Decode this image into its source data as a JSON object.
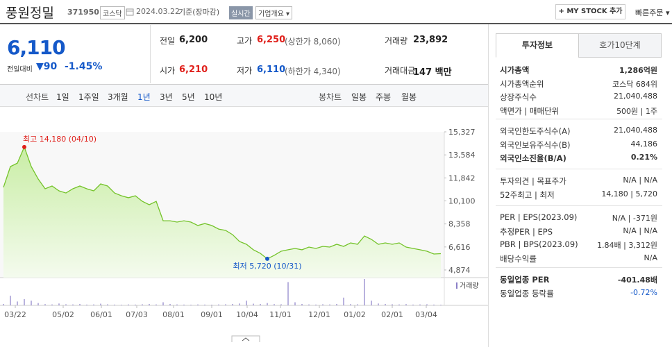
{
  "header": {
    "name": "풍원정밀",
    "code": "371950",
    "market": "코스닥",
    "date": "2024.03.22",
    "basis": "기준(장마감)",
    "realtime": "실시간",
    "overview": "기업개요",
    "mystock": "+ MY STOCK 추가",
    "quick_order": "빠른주문"
  },
  "price": {
    "current": "6,110",
    "change_label": "전일대비",
    "change": "▼90",
    "rate": "-1.45%"
  },
  "stats": [
    [
      {
        "label": "전일",
        "value": "6,200"
      },
      {
        "label": "고가",
        "value": "6,250",
        "note": "(상한가 8,060)"
      },
      {
        "label": "거래량",
        "value": "23,892"
      }
    ],
    [
      {
        "label": "시가",
        "value": "6,210"
      },
      {
        "label": "저가",
        "value": "6,110",
        "note": "(하한가 4,340)"
      },
      {
        "label": "거래대금",
        "value": "147 백만"
      }
    ]
  ],
  "tabs": {
    "line_label": "선차트",
    "periods": [
      "1일",
      "1주일",
      "3개월",
      "1년",
      "3년",
      "5년",
      "10년"
    ],
    "selected": 3,
    "candle_label": "봉차트",
    "candles": [
      "일봉",
      "주봉",
      "월봉"
    ]
  },
  "chart_data": [
    {
      "type": "line",
      "color": "#74c32a",
      "xlim": [
        0,
        63
      ],
      "xticks": [
        {
          "value": 1.7,
          "label": "03/22"
        },
        {
          "value": 8.6,
          "label": "05/02"
        },
        {
          "value": 14.1,
          "label": "06/01"
        },
        {
          "value": 19.2,
          "label": "07/03"
        },
        {
          "value": 24.5,
          "label": "08/01"
        },
        {
          "value": 30,
          "label": "09/01"
        },
        {
          "value": 35.1,
          "label": "10/04"
        },
        {
          "value": 39.9,
          "label": "11/01"
        },
        {
          "value": 45.5,
          "label": "12/01"
        },
        {
          "value": 50.6,
          "label": "01/02"
        },
        {
          "value": 56,
          "label": "02/01"
        },
        {
          "value": 60.9,
          "label": "03/04"
        }
      ],
      "ylim": [
        4874,
        15327
      ],
      "yticks": [
        {
          "value": 4874,
          "label": "4,874"
        },
        {
          "value": 6616,
          "label": "6,616"
        },
        {
          "value": 8358,
          "label": "8,358"
        },
        {
          "value": 10100,
          "label": "10,100"
        },
        {
          "value": 11842,
          "label": "11,842"
        },
        {
          "value": 13584,
          "label": "13,584"
        },
        {
          "value": 15327,
          "label": "15,327"
        }
      ],
      "grid": false,
      "values": [
        11130,
        12700,
        12960,
        14180,
        12700,
        11760,
        11020,
        11230,
        10860,
        10700,
        11020,
        11230,
        11020,
        10860,
        11390,
        11230,
        10700,
        10490,
        10340,
        10490,
        10070,
        9810,
        10070,
        8600,
        8600,
        8500,
        8600,
        8500,
        8240,
        8390,
        8240,
        7970,
        7870,
        7550,
        7030,
        6820,
        6400,
        6130,
        5720,
        5980,
        6290,
        6400,
        6500,
        6400,
        6610,
        6500,
        6660,
        6610,
        6820,
        6660,
        6920,
        6820,
        7450,
        7190,
        6820,
        6920,
        6820,
        6920,
        6610,
        6500,
        6400,
        6290,
        6080,
        6110
      ],
      "high_index": 3,
      "high_text": "최고 14,180 (04/10)",
      "low_index": 38,
      "low_text": "최저 5,720 (10/31)"
    },
    {
      "type": "bar",
      "label": "거래량",
      "color": "#8a7fc7",
      "values": [
        90000,
        620000,
        250000,
        400000,
        300000,
        150000,
        80000,
        60000,
        120000,
        70000,
        60000,
        90000,
        50000,
        60000,
        110000,
        70000,
        50000,
        40000,
        60000,
        50000,
        70000,
        90000,
        60000,
        200000,
        90000,
        60000,
        50000,
        40000,
        60000,
        50000,
        40000,
        60000,
        70000,
        90000,
        120000,
        300000,
        110000,
        90000,
        150000,
        80000,
        70000,
        1500000,
        200000,
        90000,
        60000,
        50000,
        70000,
        60000,
        90000,
        500000,
        80000,
        70000,
        1700000,
        300000,
        120000,
        90000,
        70000,
        60000,
        80000,
        50000,
        60000,
        70000,
        50000,
        40000
      ]
    }
  ],
  "panel": {
    "tabs": [
      "투자정보",
      "호가10단계"
    ],
    "selected": 0,
    "groups": [
      [
        {
          "label": "시가총액",
          "value": "1,286억원",
          "bold": true
        },
        {
          "label": "시가총액순위",
          "value": "코스닥 684위"
        },
        {
          "label": "상장주식수",
          "value": "21,040,488"
        },
        {
          "label": "액면가 | 매매단위",
          "value": "500원 | 1주"
        }
      ],
      [
        {
          "label": "외국인한도주식수(A)",
          "value": "21,040,488"
        },
        {
          "label": "외국인보유주식수(B)",
          "value": "44,186"
        },
        {
          "label": "외국인소진율(B/A)",
          "value": "0.21%",
          "bold": true
        }
      ],
      [
        {
          "label": "투자의견 | 목표주가",
          "value": "N/A | N/A"
        },
        {
          "label": "52주최고 | 최저",
          "value": "14,180 | 5,720"
        }
      ],
      [
        {
          "label": "PER | EPS(2023.09)",
          "value": "N/A | -371원"
        },
        {
          "label": "추정PER | EPS",
          "value": "N/A | N/A"
        },
        {
          "label": "PBR | BPS(2023.09)",
          "value": "1.84배 | 3,312원"
        },
        {
          "label": "배당수익률",
          "value": "N/A"
        }
      ],
      [
        {
          "label": "동일업종 PER",
          "value": "-401.48배",
          "bold": true
        },
        {
          "label": "동일업종 등락률",
          "value": "-0.72%",
          "blue": true
        }
      ]
    ]
  }
}
